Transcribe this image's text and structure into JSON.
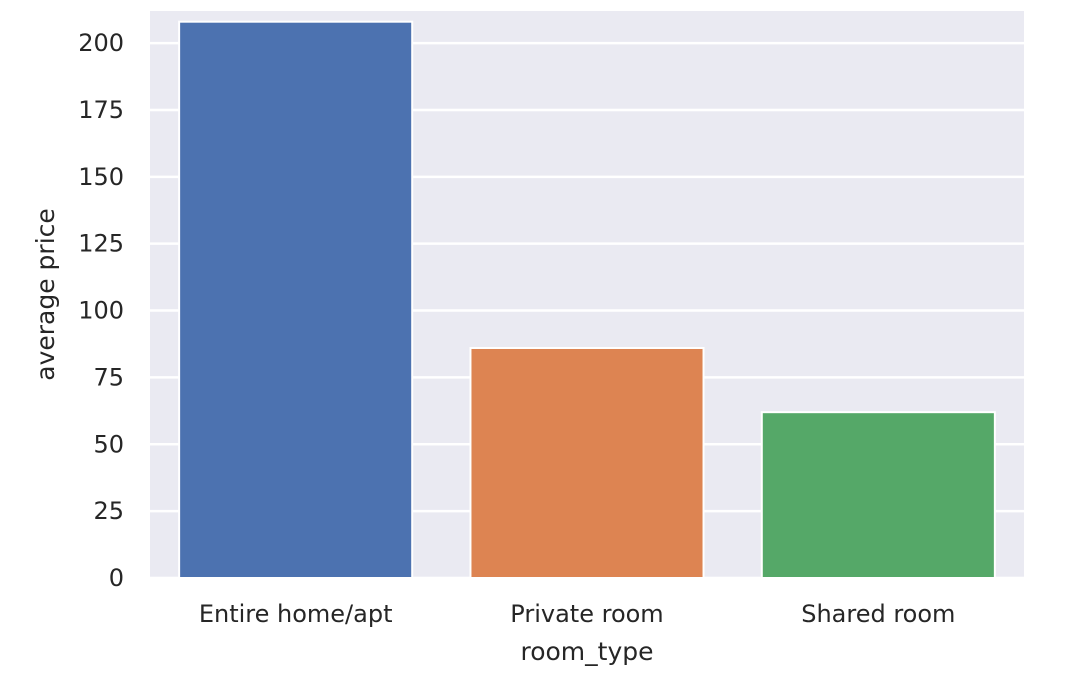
{
  "chart_data": {
    "type": "bar",
    "categories": [
      "Entire home/apt",
      "Private room",
      "Shared room"
    ],
    "values": [
      208,
      86,
      62
    ],
    "xlabel": "room_type",
    "ylabel": "average price",
    "ylim": [
      0,
      212
    ],
    "yticks": [
      "0",
      "25",
      "50",
      "75",
      "100",
      "125",
      "150",
      "175",
      "200"
    ],
    "grid": true,
    "colors": {
      "background": "#EAEAF2",
      "grid": "#FFFFFF",
      "bars": [
        "#4C72B0",
        "#DD8452",
        "#55A868"
      ]
    }
  }
}
